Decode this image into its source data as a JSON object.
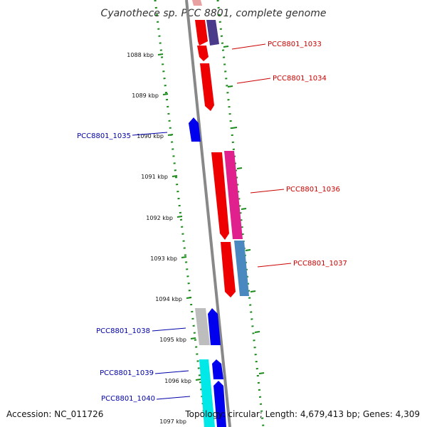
{
  "title": "Cyanothece sp. PCC 8801, complete genome",
  "footer": {
    "accession": "Accession: NC_011726",
    "summary": "Topology: circular; Length: 4,679,413 bp; Genes: 4,309"
  },
  "ticks": [
    "1088 kbp",
    "1089 kbp",
    "1090 kbp",
    "1091 kbp",
    "1092 kbp",
    "1093 kbp",
    "1094 kbp",
    "1095 kbp",
    "1096 kbp",
    "1097 kbp"
  ],
  "genes": [
    {
      "label": "PCC8801_1033",
      "color": "#cc0000"
    },
    {
      "label": "PCC8801_1034",
      "color": "#cc0000"
    },
    {
      "label": "PCC8801_1035",
      "color": "#0000aa"
    },
    {
      "label": "PCC8801_1036",
      "color": "#cc0000"
    },
    {
      "label": "PCC8801_1037",
      "color": "#cc0000"
    },
    {
      "label": "PCC8801_1038",
      "color": "#0000aa"
    },
    {
      "label": "PCC8801_1039",
      "color": "#0000aa"
    },
    {
      "label": "PCC8801_1040",
      "color": "#0000aa"
    }
  ],
  "colors": {
    "red_gene": "#ee0000",
    "pink_gene": "#e0208c",
    "blue_gene": "#0000ee",
    "steel_gene": "#4a88c0",
    "gray_gene": "#bdbdbd",
    "cyan_gene": "#00e8e8",
    "purple_gene": "#4a3a8a",
    "backbone": "#888888",
    "gc_dots": "#1a8a1a"
  }
}
